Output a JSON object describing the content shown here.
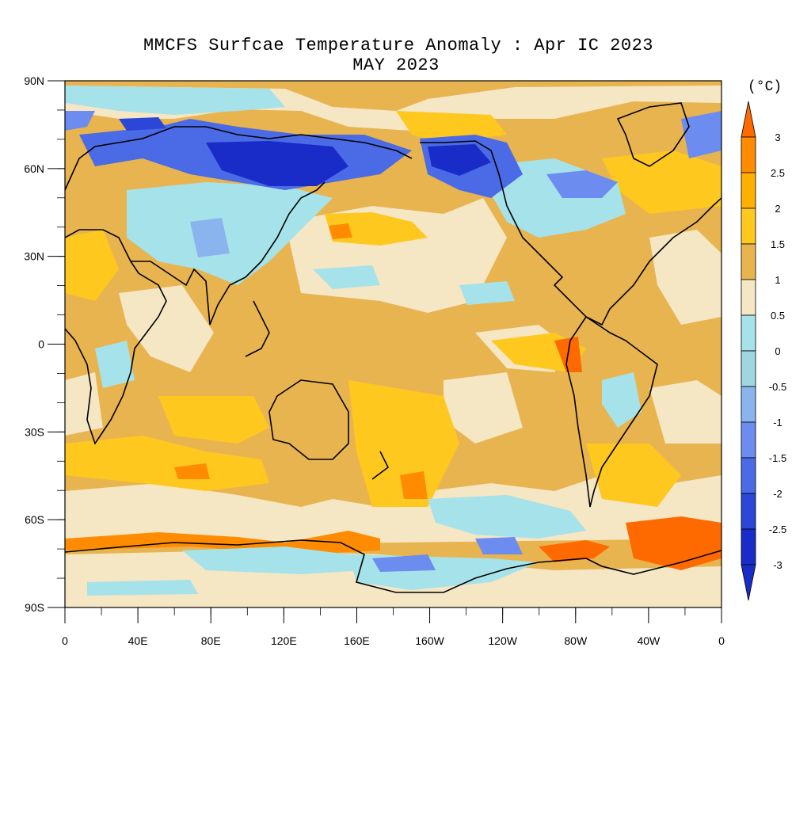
{
  "title": "MMCFS Surfcae Temperature Anomaly : Apr IC 2023",
  "subtitle": "MAY 2023",
  "units": "(°C)",
  "y_ticks": [
    "90N",
    "60N",
    "30N",
    "0",
    "30S",
    "60S",
    "90S"
  ],
  "x_ticks": [
    "0",
    "40E",
    "80E",
    "120E",
    "160E",
    "160W",
    "120W",
    "80W",
    "40W",
    "0"
  ],
  "colorbar": {
    "labels": [
      "3",
      "2.5",
      "2",
      "1.5",
      "1",
      "0.5",
      "0",
      "-0.5",
      "-1",
      "-1.5",
      "-2",
      "-2.5",
      "-3"
    ],
    "colors_top_to_bottom": [
      "#ff6a00",
      "#ff8c00",
      "#ffb000",
      "#ffc81e",
      "#e8b450",
      "#f5e6c4",
      "#a6e2ea",
      "#a0d6de",
      "#8ab4ee",
      "#6c8cf0",
      "#4a6ae6",
      "#2c46d8",
      "#1a2cc8"
    ]
  },
  "palette": {
    "very_cold": "#1a2cc8",
    "cold": "#4a6ae6",
    "cool": "#8ab4ee",
    "slightly_cool": "#a6e2ea",
    "neutral": "#f5e6c4",
    "warm": "#e8b450",
    "warmer": "#ffc81e",
    "hot": "#ffb000",
    "very_hot": "#ff6a00"
  }
}
